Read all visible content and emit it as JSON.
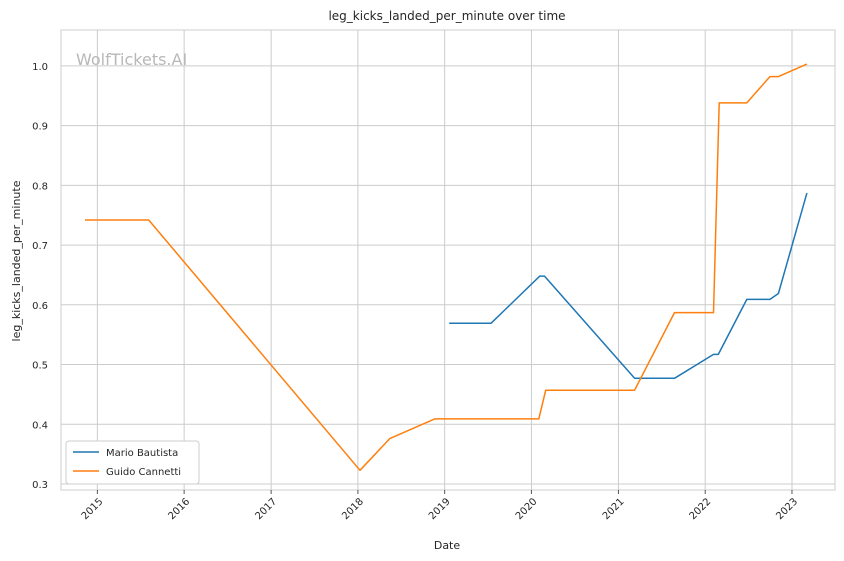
{
  "watermark": "WolfTickets.AI",
  "chart_data": {
    "type": "line",
    "title": "leg_kicks_landed_per_minute over time",
    "xlabel": "Date",
    "ylabel": "leg_kicks_landed_per_minute",
    "xlim": [
      "2014-08-01",
      "2023-07-01"
    ],
    "ylim": [
      0.29,
      1.06
    ],
    "x_ticks": [
      "2015-01-01",
      "2016-01-01",
      "2017-01-01",
      "2018-01-01",
      "2019-01-01",
      "2020-01-01",
      "2021-01-01",
      "2022-01-01",
      "2023-01-01"
    ],
    "x_tick_labels": [
      "2015",
      "2016",
      "2017",
      "2018",
      "2019",
      "2020",
      "2021",
      "2022",
      "2023"
    ],
    "y_ticks": [
      0.3,
      0.4,
      0.5,
      0.6,
      0.7,
      0.8,
      0.9,
      1.0
    ],
    "y_tick_labels": [
      "0.3",
      "0.4",
      "0.5",
      "0.6",
      "0.7",
      "0.8",
      "0.9",
      "1.0"
    ],
    "grid": true,
    "legend_position": "bottom-left",
    "series": [
      {
        "name": "Mario Bautista",
        "color": "#1f77b4",
        "points": [
          [
            "2019-01-20",
            0.569
          ],
          [
            "2019-07-15",
            0.569
          ],
          [
            "2020-02-05",
            0.648
          ],
          [
            "2020-02-25",
            0.648
          ],
          [
            "2021-03-10",
            0.477
          ],
          [
            "2021-08-25",
            0.477
          ],
          [
            "2022-02-05",
            0.517
          ],
          [
            "2022-02-25",
            0.517
          ],
          [
            "2022-06-25",
            0.609
          ],
          [
            "2022-09-30",
            0.609
          ],
          [
            "2022-11-05",
            0.619
          ],
          [
            "2023-03-05",
            0.787
          ]
        ]
      },
      {
        "name": "Guido Cannetti",
        "color": "#ff7f0e",
        "points": [
          [
            "2014-11-10",
            0.742
          ],
          [
            "2015-08-05",
            0.742
          ],
          [
            "2018-01-10",
            0.323
          ],
          [
            "2018-05-15",
            0.376
          ],
          [
            "2018-11-20",
            0.409
          ],
          [
            "2020-02-01",
            0.409
          ],
          [
            "2020-03-01",
            0.457
          ],
          [
            "2021-03-10",
            0.457
          ],
          [
            "2021-08-25",
            0.587
          ],
          [
            "2022-02-05",
            0.587
          ],
          [
            "2022-03-01",
            0.938
          ],
          [
            "2022-06-25",
            0.938
          ],
          [
            "2022-09-30",
            0.982
          ],
          [
            "2022-11-05",
            0.982
          ],
          [
            "2023-03-05",
            1.003
          ]
        ]
      }
    ]
  }
}
